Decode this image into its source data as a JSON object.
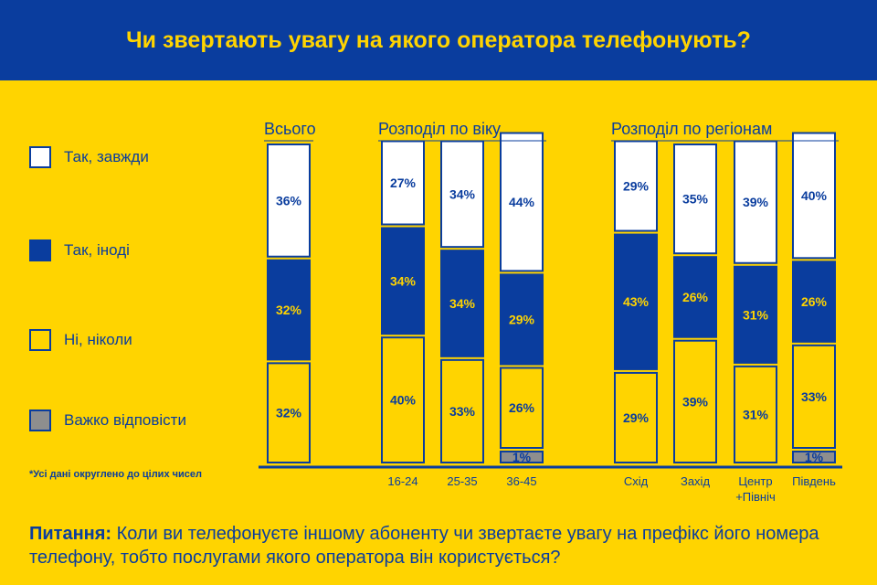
{
  "title": "Чи звертають увагу на якого оператора телефонують?",
  "legend": [
    {
      "label": "Так, завжди",
      "color": "#FFFFFF"
    },
    {
      "label": "Так, іноді",
      "color": "#0A3D9E"
    },
    {
      "label": "Ні, ніколи",
      "color": "#FFD400"
    },
    {
      "label": "Важко відповісти",
      "color": "#8E8E8E"
    }
  ],
  "footnote": "*Усі дані округлено до цілих чисел",
  "question": {
    "label": "Питання:",
    "text": "Коли ви телефонуєте іншому абоненту чи звертаєте увагу на префікс його номера телефону, тобто послугами якого оператора він користується?"
  },
  "chart_data": {
    "type": "bar",
    "stacked": true,
    "ylim": [
      0,
      100
    ],
    "groups": [
      {
        "label": "Всього",
        "categories": [
          ""
        ]
      },
      {
        "label": "Розподіл по віку",
        "categories": [
          "16-24",
          "25-35",
          "36-45"
        ]
      },
      {
        "label": "Розподіл по регіонам",
        "categories": [
          "Схід",
          "Захід",
          "Центр +Північ",
          "Південь"
        ]
      }
    ],
    "categories": [
      "",
      "16-24",
      "25-35",
      "36-45",
      "Схід",
      "Захід",
      "Центр +Північ",
      "Південь"
    ],
    "series": [
      {
        "name": "Важко відповісти",
        "color": "#8E8E8E",
        "values": [
          0,
          0,
          0,
          1,
          0,
          0,
          0,
          1
        ],
        "labels": [
          "",
          "",
          "",
          "1%",
          "",
          "",
          "",
          "1%"
        ]
      },
      {
        "name": "Ні, ніколи",
        "color": "#FFD400",
        "values": [
          32,
          40,
          33,
          26,
          29,
          39,
          31,
          33
        ],
        "labels": [
          "32%",
          "40%",
          "33%",
          "26%",
          "29%",
          "39%",
          "31%",
          "33%"
        ]
      },
      {
        "name": "Так, іноді",
        "color": "#0A3D9E",
        "values": [
          32,
          34,
          34,
          29,
          43,
          26,
          31,
          26
        ],
        "labels": [
          "32%",
          "34%",
          "34%",
          "29%",
          "43%",
          "26%",
          "31%",
          "26%"
        ]
      },
      {
        "name": "Так, завжди",
        "color": "#FFFFFF",
        "values": [
          36,
          27,
          34,
          44,
          29,
          35,
          39,
          40
        ],
        "labels": [
          "36%",
          "27%",
          "34%",
          "44%",
          "29%",
          "35%",
          "39%",
          "40%"
        ]
      }
    ]
  }
}
